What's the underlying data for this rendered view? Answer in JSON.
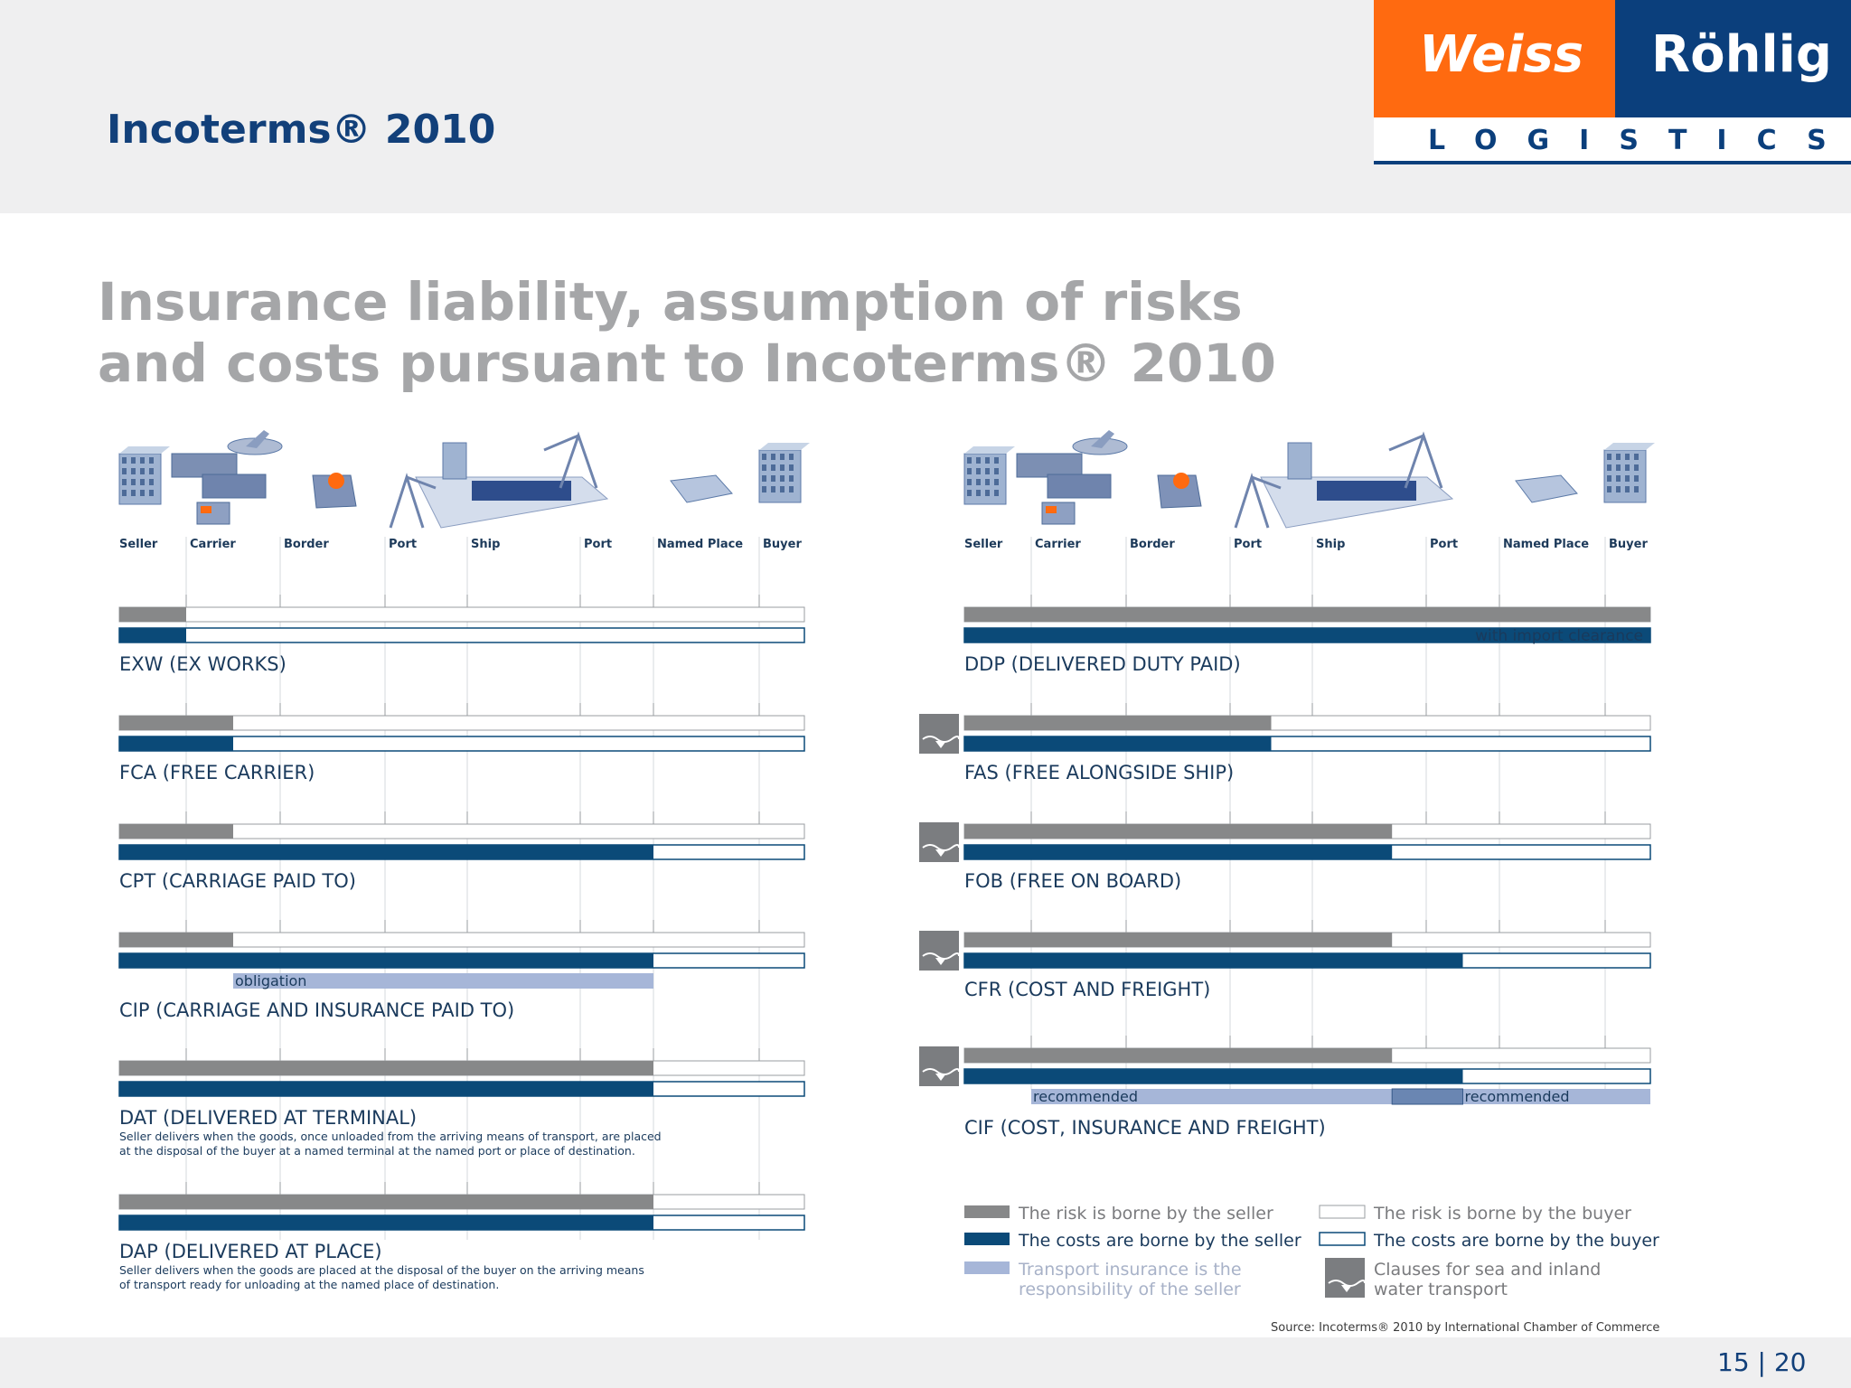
{
  "header": {
    "title": "Incoterms® 2010"
  },
  "logo": {
    "word_left": "Weiss",
    "word_right": "Röhlig",
    "sub": "LOGISTICS"
  },
  "main_title": {
    "line1": "Insurance liability, assumption of risks",
    "line2": "and costs pursuant to Incoterms® 2010"
  },
  "stages": [
    "Seller",
    "Carrier",
    "Border",
    "Port",
    "Ship",
    "Port",
    "Named Place",
    "Buyer"
  ],
  "colors": {
    "risk": "#878889",
    "cost": "#0b4a78",
    "insurance": "#a6b6d8",
    "text": "#1a3a5c",
    "orange": "#ff6a10"
  },
  "terms": [
    {
      "id": "exw",
      "label": "EXW (EX WORKS)",
      "risk_seller_to": 1,
      "cost_seller_to": 1
    },
    {
      "id": "fca",
      "label": "FCA (FREE CARRIER)",
      "risk_seller_to": 1.5,
      "cost_seller_to": 1.5
    },
    {
      "id": "cpt",
      "label": "CPT (CARRIAGE PAID TO)",
      "risk_seller_to": 1.5,
      "cost_seller_to": 6
    },
    {
      "id": "cip",
      "label": "CIP (CARRIAGE AND INSURANCE PAID TO)",
      "risk_seller_to": 1.5,
      "cost_seller_to": 6,
      "insurance": {
        "from": 1.5,
        "to": 6,
        "label": "obligation"
      }
    },
    {
      "id": "dat",
      "label": "DAT (DELIVERED AT TERMINAL)",
      "risk_seller_to": 6,
      "cost_seller_to": 6,
      "description": [
        "Seller delivers when the goods, once unloaded from the arriving means of transport, are placed",
        "at the disposal of the buyer at a named terminal at the named port or place of destination."
      ]
    },
    {
      "id": "dap",
      "label": "DAP (DELIVERED AT PLACE)",
      "risk_seller_to": 6,
      "cost_seller_to": 6,
      "description": [
        "Seller delivers when the goods are placed at the disposal of the buyer on the arriving means",
        "of transport ready for unloading at the named place of destination."
      ]
    },
    {
      "id": "ddp",
      "label": "DDP (DELIVERED DUTY PAID)",
      "risk_seller_to": 7.7,
      "cost_seller_to": 7.7,
      "cost_note": "with import clearance"
    },
    {
      "id": "fas",
      "label": "FAS (FREE ALONGSIDE SHIP)",
      "risk_seller_to": 3.5,
      "cost_seller_to": 3.5,
      "sea_clause": true
    },
    {
      "id": "fob",
      "label": "FOB (FREE ON BOARD)",
      "risk_seller_to": 4.7,
      "cost_seller_to": 4.7,
      "sea_clause": true
    },
    {
      "id": "cfr",
      "label": "CFR (COST AND FREIGHT)",
      "risk_seller_to": 4.7,
      "cost_seller_to": 5.5,
      "sea_clause": true
    },
    {
      "id": "cif",
      "label": "CIF (COST, INSURANCE AND FREIGHT)",
      "risk_seller_to": 4.7,
      "cost_seller_to": 5.5,
      "sea_clause": true,
      "insurance_segments": [
        {
          "from": 1,
          "to": 4.7,
          "label": "recommended"
        },
        {
          "from": 5.5,
          "to": 7.7,
          "label": "recommended"
        }
      ],
      "insurance_overlap": {
        "from": 4.7,
        "to": 5.5
      }
    }
  ],
  "legend": {
    "risk_seller": "The risk is borne by the seller",
    "risk_buyer": "The risk is borne by the buyer",
    "cost_seller": "The costs are borne by the seller",
    "cost_buyer": "The costs are borne by the buyer",
    "insurance": [
      "Transport insurance is the",
      "responsibility of the seller"
    ],
    "sea": [
      "Clauses for sea and inland",
      "water transport"
    ]
  },
  "source": "Source: Incoterms® 2010 by International Chamber of Commerce",
  "page": "15 | 20"
}
